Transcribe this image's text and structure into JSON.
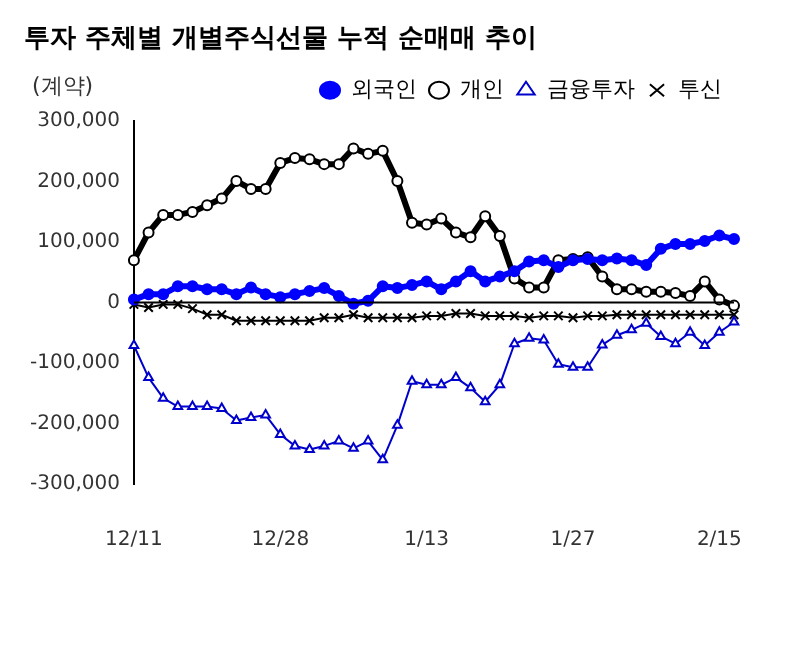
{
  "chart_data": {
    "type": "line",
    "title": "투자 주체별 개별주식선물 누적 순매매 추이",
    "ylabel": "(계약)",
    "categories": [
      "12/11",
      null,
      null,
      null,
      null,
      null,
      null,
      null,
      null,
      null,
      "12/28",
      null,
      null,
      null,
      null,
      null,
      null,
      null,
      null,
      null,
      "1/13",
      null,
      null,
      null,
      null,
      null,
      null,
      null,
      null,
      null,
      "1/27",
      null,
      null,
      null,
      null,
      null,
      null,
      null,
      null,
      null,
      "2/15",
      null
    ],
    "series": [
      {
        "name": "외국인",
        "color": "#0000ff",
        "marker": "circle",
        "values": [
          5000,
          14000,
          14000,
          27000,
          27000,
          22000,
          22000,
          14000,
          25000,
          14000,
          9000,
          14000,
          19000,
          24000,
          11000,
          -2000,
          3000,
          27000,
          24000,
          29000,
          35000,
          22000,
          35000,
          52000,
          35000,
          43000,
          52000,
          68000,
          70000,
          59000,
          70000,
          72000,
          70000,
          73000,
          70000,
          62000,
          89000,
          97000,
          97000,
          102000,
          111000,
          105000
        ]
      },
      {
        "name": "개인",
        "color": "#000000",
        "marker": "circle",
        "values": [
          70000,
          116000,
          145000,
          145000,
          150000,
          161000,
          172000,
          201000,
          188000,
          188000,
          231000,
          239000,
          237000,
          229000,
          229000,
          255000,
          246000,
          251000,
          201000,
          132000,
          129000,
          139000,
          116000,
          108000,
          143000,
          110000,
          40000,
          25000,
          25000,
          70000,
          72000,
          75000,
          43000,
          22000,
          22000,
          18000,
          18000,
          16000,
          11000,
          35000,
          5000,
          -5000
        ]
      },
      {
        "name": "금융투자",
        "color": "#0000cc",
        "marker": "triangle",
        "values": [
          -71000,
          -124000,
          -158000,
          -172000,
          -172000,
          -172000,
          -175000,
          -195000,
          -190000,
          -186000,
          -218000,
          -237000,
          -243000,
          -237000,
          -229000,
          -241000,
          -229000,
          -260000,
          -203000,
          -130000,
          -136000,
          -136000,
          -124000,
          -141000,
          -164000,
          -136000,
          -68000,
          -59000,
          -62000,
          -102000,
          -107000,
          -107000,
          -70000,
          -54000,
          -45000,
          -34000,
          -56000,
          -68000,
          -49000,
          -71000,
          -49000,
          -32000
        ]
      },
      {
        "name": "투신",
        "color": "#000000",
        "marker": "cross",
        "values": [
          -3000,
          -8000,
          -3000,
          -3000,
          -10000,
          -20000,
          -20000,
          -30000,
          -30000,
          -30000,
          -30000,
          -30000,
          -30000,
          -25000,
          -25000,
          -20000,
          -25000,
          -25000,
          -25000,
          -25000,
          -22000,
          -22000,
          -18000,
          -18000,
          -22000,
          -22000,
          -22000,
          -25000,
          -22000,
          -22000,
          -25000,
          -22000,
          -22000,
          -20000,
          -20000,
          -20000,
          -20000,
          -20000,
          -20000,
          -20000,
          -20000,
          -20000
        ]
      }
    ],
    "ylim": [
      -300000,
      300000
    ],
    "yticks": [
      {
        "value": -300000,
        "label": "-300,000"
      },
      {
        "value": -200000,
        "label": "-200,000"
      },
      {
        "value": -100000,
        "label": "-100,000"
      },
      0,
      {
        "value": 100000,
        "label": "100,000"
      },
      {
        "value": 200000,
        "label": "200,000"
      },
      {
        "value": 300000,
        "label": "300,000"
      }
    ],
    "ref_lines": [
      {
        "axis": "y",
        "value": 0,
        "color": "#000000"
      }
    ],
    "grid": false,
    "legend": "top"
  }
}
